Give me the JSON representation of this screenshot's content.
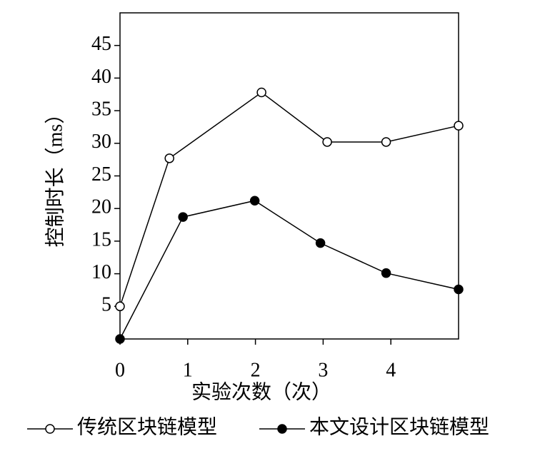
{
  "chart_data": {
    "type": "line",
    "x_label": "实验次数（次）",
    "y_label": "控制时长（ms）",
    "xlim": [
      0,
      5
    ],
    "xticks": [
      0,
      1,
      2,
      3,
      4
    ],
    "ylim": [
      0,
      50
    ],
    "yticks": [
      5,
      10,
      15,
      20,
      25,
      30,
      35,
      40,
      45
    ],
    "frame": true,
    "legend": "bottom",
    "series": [
      {
        "name": "传统区块链模型",
        "color": "#000000",
        "marker": "open",
        "x": [
          0,
          0.73,
          2.09,
          3.06,
          3.93,
          5
        ],
        "values": [
          5,
          27.7,
          37.8,
          30.2,
          30.2,
          32.7
        ]
      },
      {
        "name": "本文设计区块链模型",
        "color": "#000000",
        "marker": "filled",
        "x": [
          0,
          0.93,
          1.99,
          2.96,
          3.93,
          5
        ],
        "values": [
          0,
          18.7,
          21.2,
          14.7,
          10.1,
          7.6
        ]
      }
    ]
  }
}
